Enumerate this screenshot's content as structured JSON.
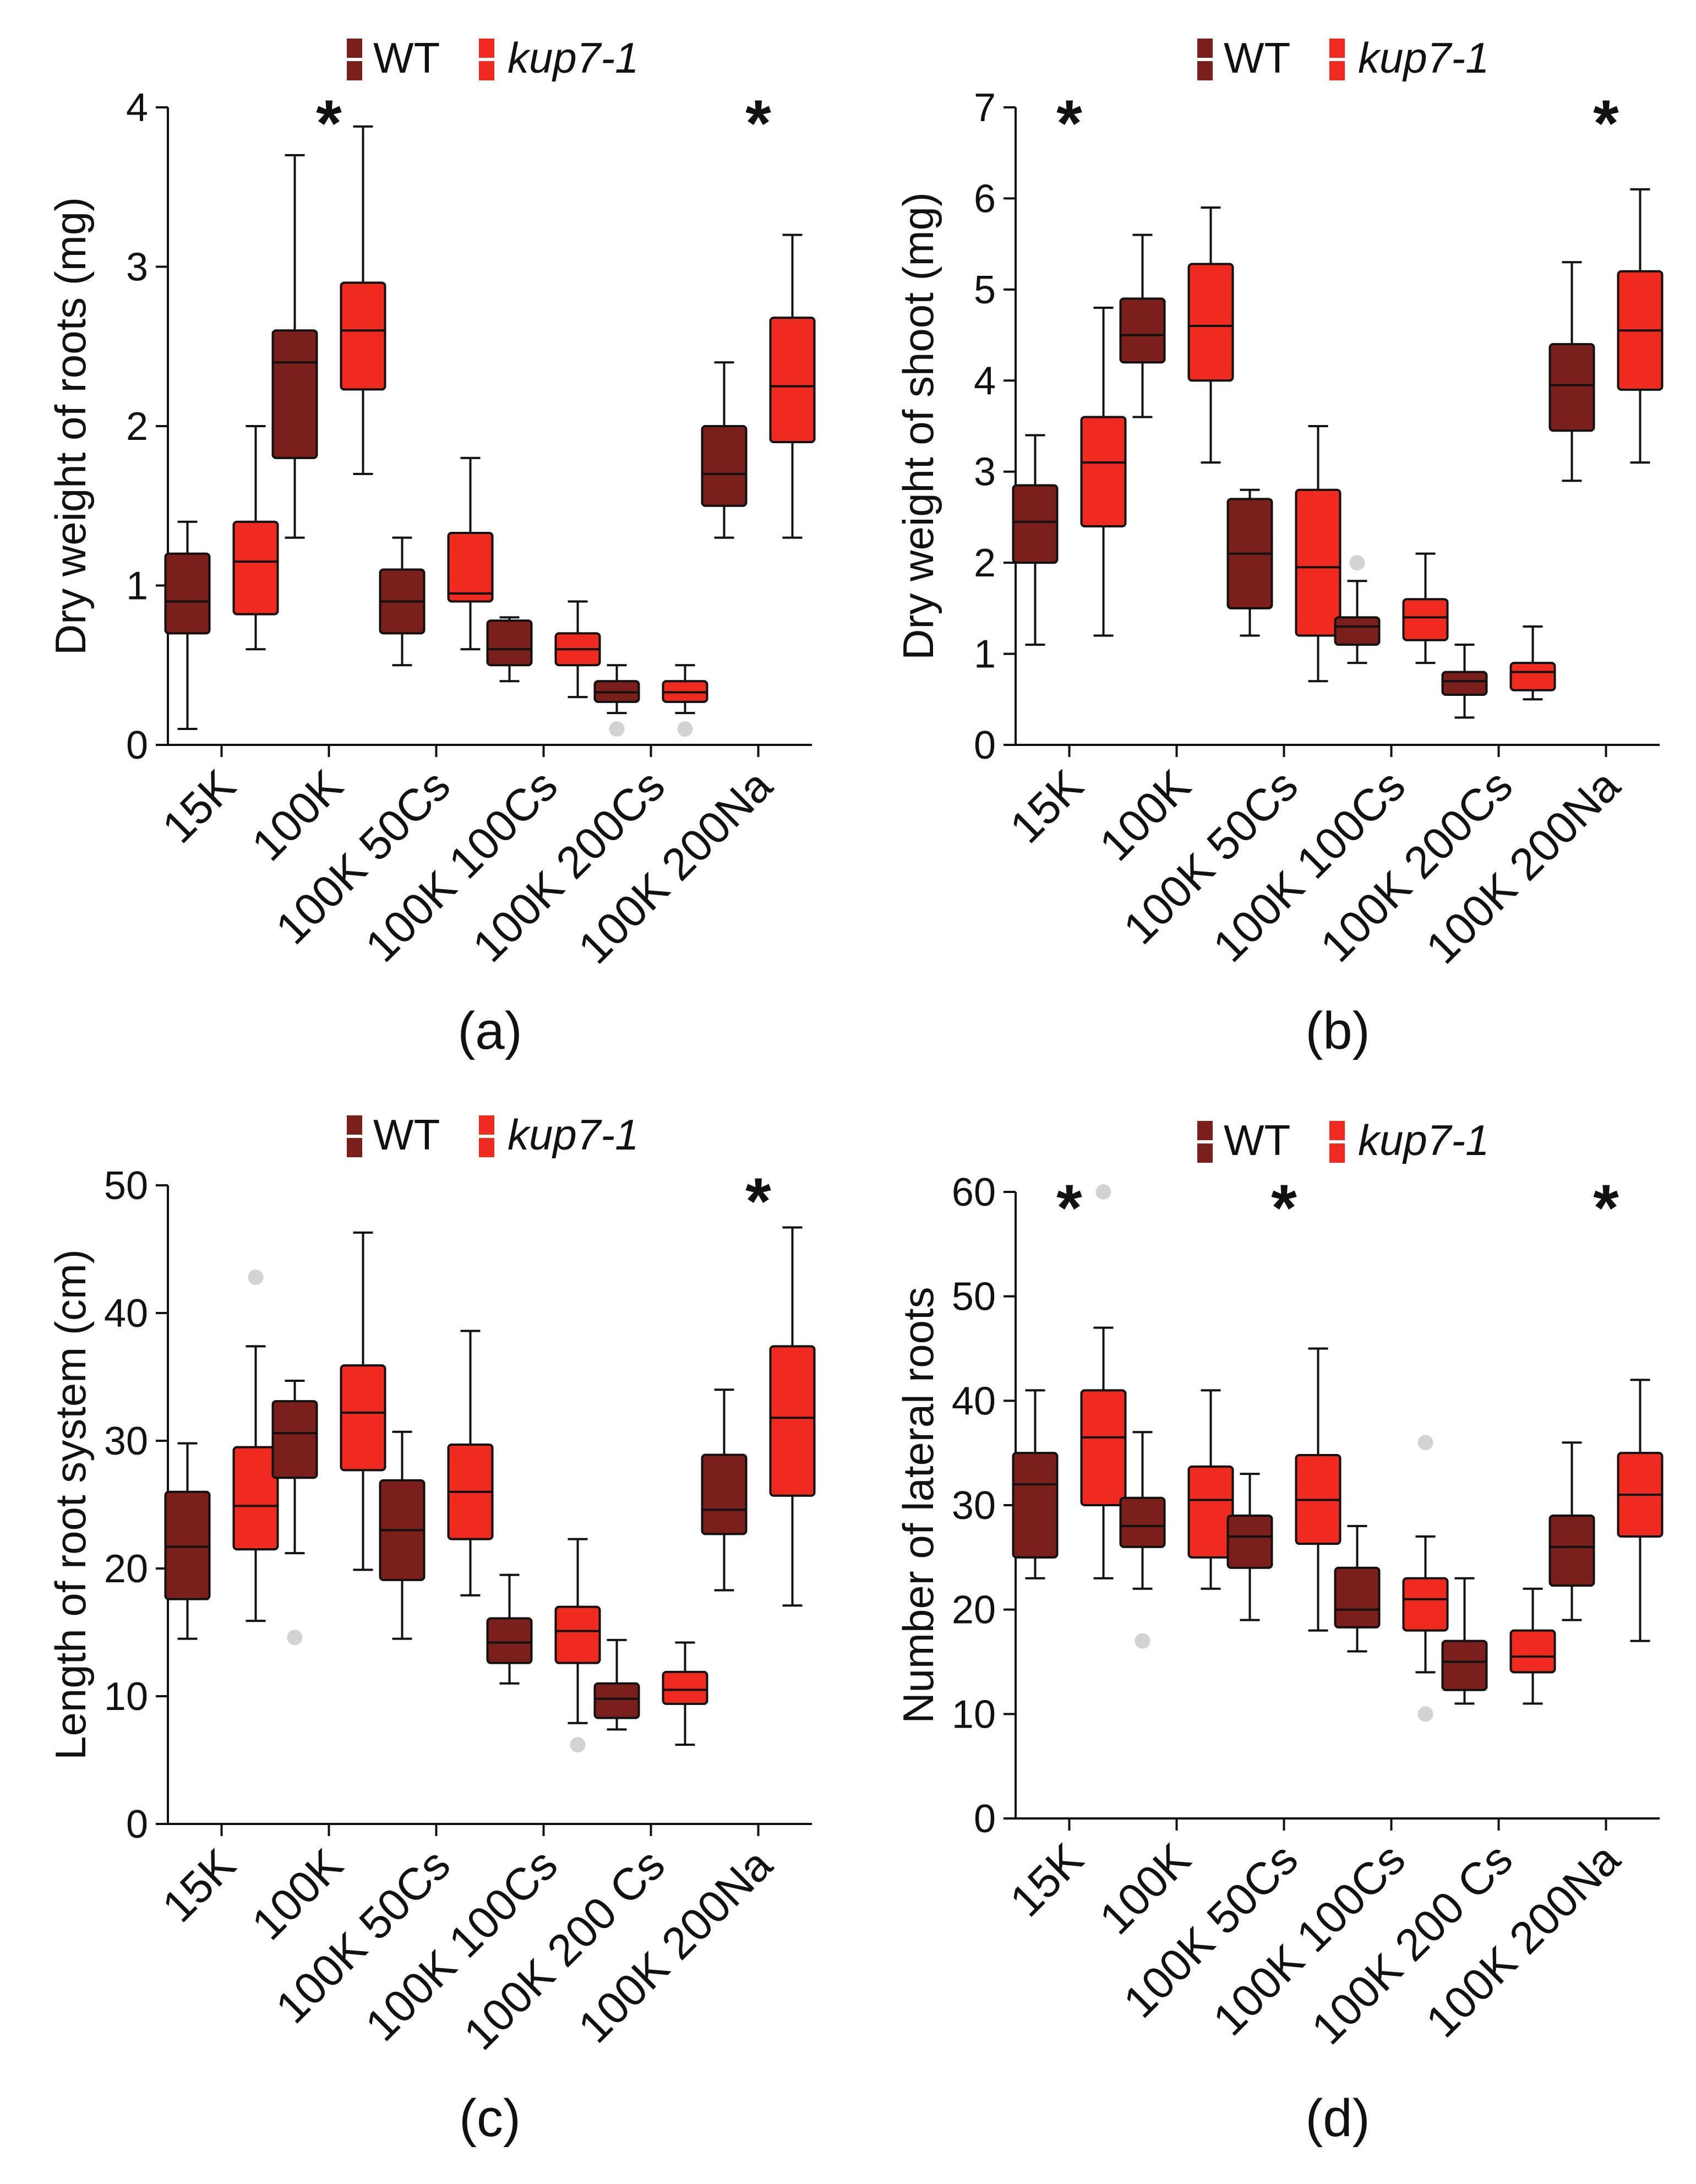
{
  "colors": {
    "wt": "#7a1f1a",
    "kup7": "#ef2b1f",
    "outlier": "#d3d3d3",
    "ink": "#111111"
  },
  "legend": {
    "wt_label": "WT",
    "kup7_label": "kup7-1"
  },
  "chart_data": [
    {
      "type": "box",
      "panel_label": "(a)",
      "ylabel": "Dry weight of roots (mg)",
      "ylim": [
        0,
        4
      ],
      "yticks": [
        0,
        1,
        2,
        3,
        4
      ],
      "categories": [
        "15K",
        "100K",
        "100K 50Cs",
        "100K 100Cs",
        "100K 200Cs",
        "100K 200Na"
      ],
      "significant": [
        "100K",
        "100K 200Na"
      ],
      "series": [
        {
          "name": "WT",
          "boxes": [
            {
              "min": 0.1,
              "q1": 0.7,
              "median": 0.9,
              "q3": 1.2,
              "max": 1.4,
              "outliers": []
            },
            {
              "min": 1.3,
              "q1": 1.8,
              "median": 2.4,
              "q3": 2.6,
              "max": 3.7,
              "outliers": []
            },
            {
              "min": 0.5,
              "q1": 0.7,
              "median": 0.9,
              "q3": 1.1,
              "max": 1.3,
              "outliers": []
            },
            {
              "min": 0.4,
              "q1": 0.5,
              "median": 0.6,
              "q3": 0.78,
              "max": 0.8,
              "outliers": []
            },
            {
              "min": 0.2,
              "q1": 0.27,
              "median": 0.33,
              "q3": 0.4,
              "max": 0.5,
              "outliers": [
                0.1
              ]
            },
            {
              "min": 1.3,
              "q1": 1.5,
              "median": 1.7,
              "q3": 2.0,
              "max": 2.4,
              "outliers": []
            }
          ]
        },
        {
          "name": "kup7-1",
          "boxes": [
            {
              "min": 0.6,
              "q1": 0.82,
              "median": 1.15,
              "q3": 1.4,
              "max": 2.0,
              "outliers": []
            },
            {
              "min": 1.7,
              "q1": 2.23,
              "median": 2.6,
              "q3": 2.9,
              "max": 3.88,
              "outliers": []
            },
            {
              "min": 0.6,
              "q1": 0.9,
              "median": 0.95,
              "q3": 1.33,
              "max": 1.8,
              "outliers": []
            },
            {
              "min": 0.3,
              "q1": 0.5,
              "median": 0.6,
              "q3": 0.7,
              "max": 0.9,
              "outliers": []
            },
            {
              "min": 0.2,
              "q1": 0.27,
              "median": 0.33,
              "q3": 0.4,
              "max": 0.5,
              "outliers": [
                0.1
              ]
            },
            {
              "min": 1.3,
              "q1": 1.9,
              "median": 2.25,
              "q3": 2.68,
              "max": 3.2,
              "outliers": []
            }
          ]
        }
      ]
    },
    {
      "type": "box",
      "panel_label": "(b)",
      "ylabel": "Dry weight of shoot (mg)",
      "ylim": [
        0,
        7
      ],
      "yticks": [
        0,
        1,
        2,
        3,
        4,
        5,
        6,
        7
      ],
      "categories": [
        "15K",
        "100K",
        "100K 50Cs",
        "100K 100Cs",
        "100K 200Cs",
        "100K 200Na"
      ],
      "significant": [
        "15K",
        "100K 200Na"
      ],
      "series": [
        {
          "name": "WT",
          "boxes": [
            {
              "min": 1.1,
              "q1": 2.0,
              "median": 2.45,
              "q3": 2.85,
              "max": 3.4,
              "outliers": []
            },
            {
              "min": 3.6,
              "q1": 4.2,
              "median": 4.5,
              "q3": 4.9,
              "max": 5.6,
              "outliers": []
            },
            {
              "min": 1.2,
              "q1": 1.5,
              "median": 2.1,
              "q3": 2.7,
              "max": 2.8,
              "outliers": []
            },
            {
              "min": 0.9,
              "q1": 1.1,
              "median": 1.3,
              "q3": 1.4,
              "max": 1.8,
              "outliers": [
                2.0
              ]
            },
            {
              "min": 0.3,
              "q1": 0.55,
              "median": 0.7,
              "q3": 0.8,
              "max": 1.1,
              "outliers": []
            },
            {
              "min": 2.9,
              "q1": 3.45,
              "median": 3.95,
              "q3": 4.4,
              "max": 5.3,
              "outliers": []
            }
          ]
        },
        {
          "name": "kup7-1",
          "boxes": [
            {
              "min": 1.2,
              "q1": 2.4,
              "median": 3.1,
              "q3": 3.6,
              "max": 4.8,
              "outliers": []
            },
            {
              "min": 3.1,
              "q1": 4.0,
              "median": 4.6,
              "q3": 5.28,
              "max": 5.9,
              "outliers": []
            },
            {
              "min": 0.7,
              "q1": 1.2,
              "median": 1.95,
              "q3": 2.8,
              "max": 3.5,
              "outliers": []
            },
            {
              "min": 0.9,
              "q1": 1.15,
              "median": 1.4,
              "q3": 1.6,
              "max": 2.1,
              "outliers": []
            },
            {
              "min": 0.5,
              "q1": 0.6,
              "median": 0.8,
              "q3": 0.9,
              "max": 1.3,
              "outliers": []
            },
            {
              "min": 3.1,
              "q1": 3.9,
              "median": 4.55,
              "q3": 5.2,
              "max": 6.1,
              "outliers": []
            }
          ]
        }
      ]
    },
    {
      "type": "box",
      "panel_label": "(c)",
      "ylabel": "Length of root system (cm)",
      "ylim": [
        0,
        50
      ],
      "yticks": [
        0,
        10,
        20,
        30,
        40,
        50
      ],
      "categories": [
        "15K",
        "100K",
        "100K 50Cs",
        "100K 100Cs",
        "100K 200 Cs",
        "100K 200Na"
      ],
      "significant": [
        "100K 200Na"
      ],
      "series": [
        {
          "name": "WT",
          "boxes": [
            {
              "min": 14.5,
              "q1": 17.6,
              "median": 21.7,
              "q3": 26.0,
              "max": 29.8,
              "outliers": []
            },
            {
              "min": 21.2,
              "q1": 27.1,
              "median": 30.6,
              "q3": 33.1,
              "max": 34.7,
              "outliers": [
                14.6
              ]
            },
            {
              "min": 14.5,
              "q1": 19.1,
              "median": 23.0,
              "q3": 26.9,
              "max": 30.7,
              "outliers": []
            },
            {
              "min": 11.0,
              "q1": 12.6,
              "median": 14.2,
              "q3": 16.1,
              "max": 19.5,
              "outliers": []
            },
            {
              "min": 7.4,
              "q1": 8.3,
              "median": 9.8,
              "q3": 11.0,
              "max": 14.4,
              "outliers": []
            },
            {
              "min": 18.3,
              "q1": 22.7,
              "median": 24.6,
              "q3": 28.9,
              "max": 34.0,
              "outliers": []
            }
          ]
        },
        {
          "name": "kup7-1",
          "boxes": [
            {
              "min": 15.9,
              "q1": 21.5,
              "median": 24.9,
              "q3": 29.5,
              "max": 37.4,
              "outliers": [
                42.8
              ]
            },
            {
              "min": 19.9,
              "q1": 27.7,
              "median": 32.2,
              "q3": 35.9,
              "max": 46.3,
              "outliers": []
            },
            {
              "min": 17.9,
              "q1": 22.3,
              "median": 26.0,
              "q3": 29.7,
              "max": 38.6,
              "outliers": []
            },
            {
              "min": 7.9,
              "q1": 12.6,
              "median": 15.1,
              "q3": 17.0,
              "max": 22.3,
              "outliers": [
                6.2
              ]
            },
            {
              "min": 6.2,
              "q1": 9.4,
              "median": 10.5,
              "q3": 11.9,
              "max": 14.2,
              "outliers": []
            },
            {
              "min": 17.1,
              "q1": 25.7,
              "median": 31.8,
              "q3": 37.4,
              "max": 46.7,
              "outliers": []
            }
          ]
        }
      ]
    },
    {
      "type": "box",
      "panel_label": "(d)",
      "ylabel": "Number of lateral roots",
      "ylim": [
        0,
        60
      ],
      "yticks": [
        0,
        10,
        20,
        30,
        40,
        50,
        60
      ],
      "categories": [
        "15K",
        "100K",
        "100K 50Cs",
        "100K 100Cs",
        "100K 200 Cs",
        "100K 200Na"
      ],
      "significant": [
        "15K",
        "100K 50Cs",
        "100K 200Na"
      ],
      "series": [
        {
          "name": "WT",
          "boxes": [
            {
              "min": 23,
              "q1": 25,
              "median": 32,
              "q3": 35,
              "max": 41,
              "outliers": []
            },
            {
              "min": 22,
              "q1": 26,
              "median": 28,
              "q3": 30.7,
              "max": 37,
              "outliers": [
                17
              ]
            },
            {
              "min": 19,
              "q1": 24,
              "median": 27,
              "q3": 29,
              "max": 33,
              "outliers": []
            },
            {
              "min": 16,
              "q1": 18.3,
              "median": 20,
              "q3": 24,
              "max": 28,
              "outliers": []
            },
            {
              "min": 11,
              "q1": 12.3,
              "median": 15,
              "q3": 17,
              "max": 23,
              "outliers": []
            },
            {
              "min": 19,
              "q1": 22.3,
              "median": 26,
              "q3": 29,
              "max": 36,
              "outliers": []
            }
          ]
        },
        {
          "name": "kup7-1",
          "boxes": [
            {
              "min": 23,
              "q1": 30,
              "median": 36.5,
              "q3": 41,
              "max": 47,
              "outliers": [
                60
              ]
            },
            {
              "min": 22,
              "q1": 25,
              "median": 30.5,
              "q3": 33.7,
              "max": 41,
              "outliers": []
            },
            {
              "min": 18,
              "q1": 26.3,
              "median": 30.5,
              "q3": 34.8,
              "max": 45,
              "outliers": []
            },
            {
              "min": 14,
              "q1": 18,
              "median": 21,
              "q3": 23,
              "max": 27,
              "outliers": [
                36,
                10
              ]
            },
            {
              "min": 11,
              "q1": 14,
              "median": 15.5,
              "q3": 18,
              "max": 22,
              "outliers": []
            },
            {
              "min": 17,
              "q1": 27,
              "median": 31,
              "q3": 35,
              "max": 42,
              "outliers": []
            }
          ]
        }
      ]
    }
  ]
}
